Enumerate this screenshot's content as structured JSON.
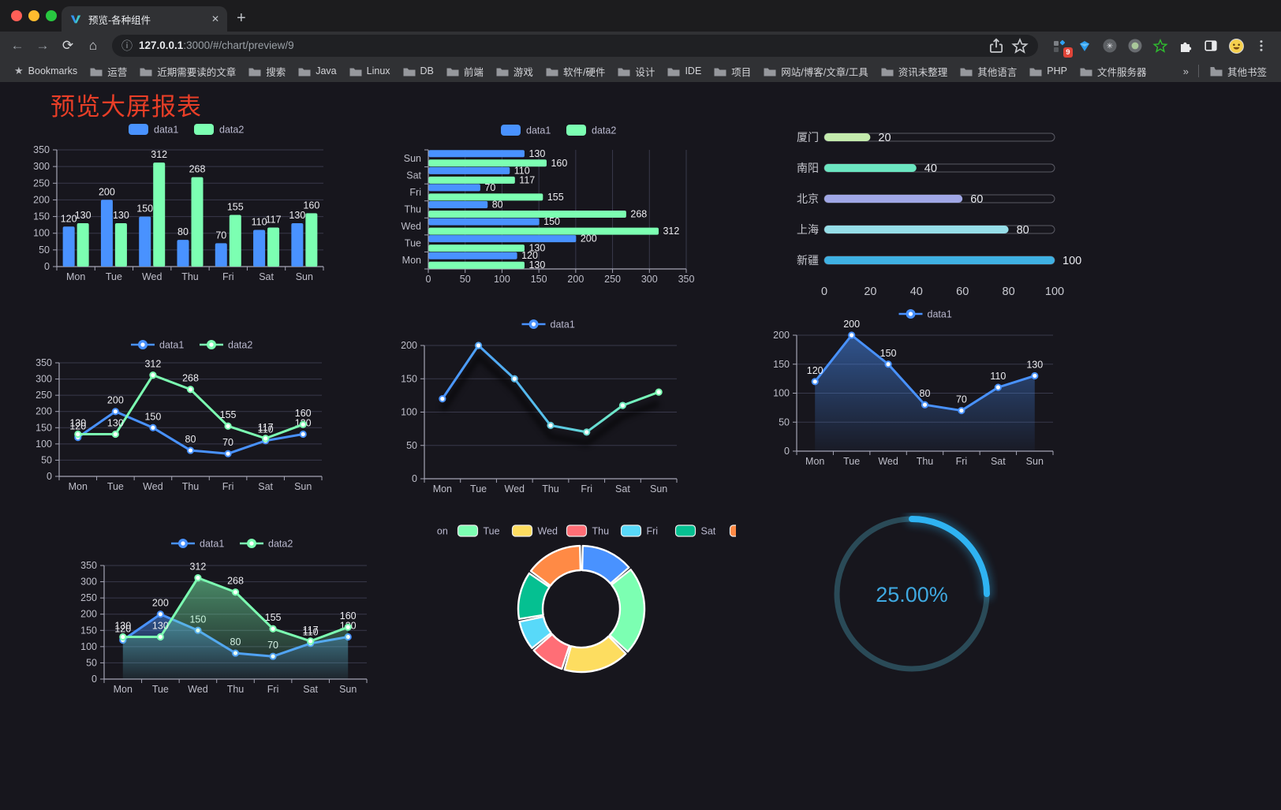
{
  "browser": {
    "traffic_lights": [
      "#ff5f57",
      "#febc2e",
      "#28c840"
    ],
    "tab": {
      "title": "预览-各种组件",
      "close_glyph": "✕",
      "new_tab_glyph": "+"
    },
    "nav": {
      "back": "←",
      "forward": "→",
      "reload": "⟳",
      "home": "⌂",
      "info": "ⓘ"
    },
    "address": {
      "host": "127.0.0.1",
      "rest": ":3000/#/chart/preview/9"
    },
    "bookmarks_label": "Bookmarks",
    "bookmarks": [
      "运营",
      "近期需要读的文章",
      "搜索",
      "Java",
      "Linux",
      "DB",
      "前端",
      "游戏",
      "软件/硬件",
      "设计",
      "IDE",
      "项目",
      "网站/博客/文章/工具",
      "资讯未整理",
      "其他语言",
      "PHP",
      "文件服务器"
    ],
    "bookmarks_overflow": "»",
    "other_bookmarks": "其他书签",
    "extension_badge": "9"
  },
  "page": {
    "title": "预览大屏报表",
    "title_color": "#e83e27",
    "background": "#17161d"
  },
  "theme": {
    "axis_text": "#bebec9",
    "axis_line": "#a5a5b5",
    "grid_line": "#39394b",
    "value_label": "#ececf0",
    "legend_text": "#b9b8ce"
  },
  "chart_data": [
    {
      "type": "bar",
      "id": "grouped-bar",
      "categories": [
        "Mon",
        "Tue",
        "Wed",
        "Thu",
        "Fri",
        "Sat",
        "Sun"
      ],
      "series": [
        {
          "name": "data1",
          "color": "#4992ff",
          "values": [
            120,
            200,
            150,
            80,
            70,
            110,
            130
          ]
        },
        {
          "name": "data2",
          "color": "#7cffb2",
          "values": [
            130,
            130,
            312,
            268,
            155,
            117,
            160
          ]
        }
      ],
      "ylim": [
        0,
        350
      ],
      "ytick": 50,
      "legend_position": "top",
      "grid": true
    },
    {
      "type": "bar",
      "id": "horizontal-bar",
      "orientation": "horizontal",
      "categories": [
        "Mon",
        "Tue",
        "Wed",
        "Thu",
        "Fri",
        "Sat",
        "Sun"
      ],
      "series": [
        {
          "name": "data1",
          "color": "#4992ff",
          "values": [
            120,
            200,
            150,
            80,
            70,
            110,
            130
          ]
        },
        {
          "name": "data2",
          "color": "#7cffb2",
          "values": [
            130,
            130,
            312,
            268,
            155,
            117,
            160
          ]
        }
      ],
      "xlim": [
        0,
        350
      ],
      "xtick": 50,
      "legend_position": "top",
      "grid": true
    },
    {
      "type": "bar",
      "id": "progress-bars",
      "subtype": "progress",
      "categories": [
        "厦门",
        "南阳",
        "北京",
        "上海",
        "新疆"
      ],
      "values": [
        20,
        40,
        60,
        80,
        100
      ],
      "colors": [
        "#c4ebad",
        "#6be6c1",
        "#a0a7e6",
        "#96dee8",
        "#3fb1e3"
      ],
      "xlim": [
        0,
        100
      ],
      "xticks": [
        0,
        20,
        40,
        60,
        80,
        100
      ]
    },
    {
      "type": "line",
      "id": "line-two-series",
      "categories": [
        "Mon",
        "Tue",
        "Wed",
        "Thu",
        "Fri",
        "Sat",
        "Sun"
      ],
      "series": [
        {
          "name": "data1",
          "color": "#4992ff",
          "values": [
            120,
            200,
            150,
            80,
            70,
            110,
            130
          ]
        },
        {
          "name": "data2",
          "color": "#7cffb2",
          "values": [
            130,
            130,
            312,
            268,
            155,
            117,
            160
          ]
        }
      ],
      "ylim": [
        0,
        350
      ],
      "ytick": 50,
      "labels": true,
      "legend_position": "top",
      "grid": true
    },
    {
      "type": "line",
      "id": "line-gradient",
      "categories": [
        "Mon",
        "Tue",
        "Wed",
        "Thu",
        "Fri",
        "Sat",
        "Sun"
      ],
      "series": [
        {
          "name": "data1",
          "gradient": [
            "#4992ff",
            "#58c4e8",
            "#7cffb2"
          ],
          "values": [
            120,
            200,
            150,
            80,
            70,
            110,
            130
          ],
          "shadow": true
        }
      ],
      "ylim": [
        0,
        200
      ],
      "ytick": 50,
      "labels": false,
      "legend_position": "top",
      "grid": true
    },
    {
      "type": "line",
      "id": "line-area",
      "categories": [
        "Mon",
        "Tue",
        "Wed",
        "Thu",
        "Fri",
        "Sat",
        "Sun"
      ],
      "series": [
        {
          "name": "data1",
          "color": "#4992ff",
          "values": [
            120,
            200,
            150,
            80,
            70,
            110,
            130
          ],
          "area": true
        }
      ],
      "ylim": [
        0,
        200
      ],
      "ytick": 50,
      "labels": true,
      "legend_position": "top",
      "grid": true
    },
    {
      "type": "line",
      "id": "line-area-two-series",
      "categories": [
        "Mon",
        "Tue",
        "Wed",
        "Thu",
        "Fri",
        "Sat",
        "Sun"
      ],
      "series": [
        {
          "name": "data1",
          "color": "#4992ff",
          "values": [
            120,
            200,
            150,
            80,
            70,
            110,
            130
          ],
          "area": true
        },
        {
          "name": "data2",
          "color": "#7cffb2",
          "values": [
            130,
            130,
            312,
            268,
            155,
            117,
            160
          ],
          "area": true
        }
      ],
      "ylim": [
        0,
        350
      ],
      "ytick": 50,
      "labels": true,
      "legend_position": "top",
      "grid": true
    },
    {
      "type": "pie",
      "id": "donut",
      "categories": [
        "Mon",
        "Tue",
        "Wed",
        "Thu",
        "Fri",
        "Sat",
        "Sun"
      ],
      "values": [
        120,
        200,
        150,
        80,
        70,
        110,
        130
      ],
      "colors": [
        "#4992ff",
        "#7cffb2",
        "#fddd60",
        "#ff6e76",
        "#58d9f9",
        "#05c091",
        "#ff8a45"
      ],
      "inner_radius": true,
      "border_color": "#ffffff",
      "legend_position": "top"
    },
    {
      "type": "gauge",
      "id": "ring-progress",
      "value": 25,
      "max": 100,
      "label": "25.00%",
      "color": "#2fb3f2",
      "track_color": "#2a4a57",
      "text_color": "#3fa9e1"
    }
  ]
}
